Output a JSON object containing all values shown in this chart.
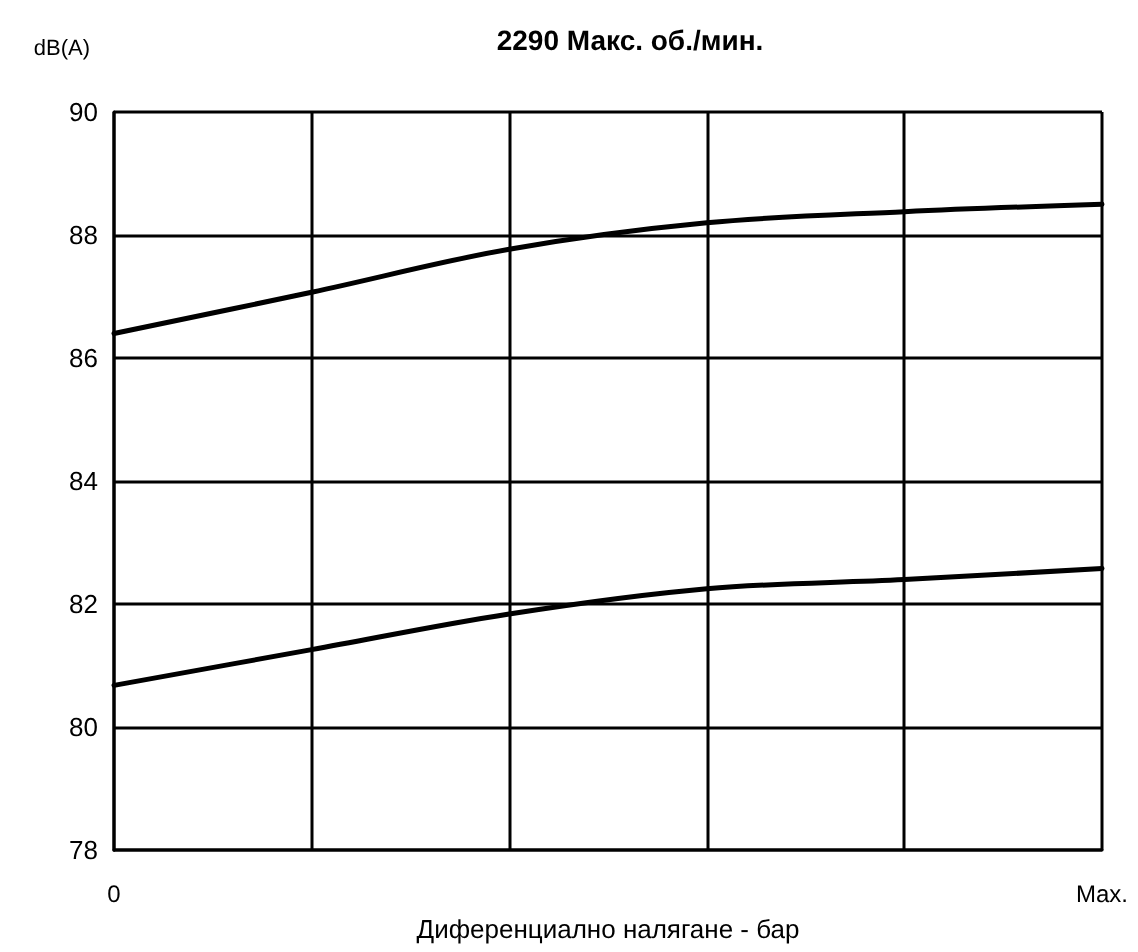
{
  "chart_data": {
    "type": "line",
    "title": "2290 Макс. об./мин.",
    "xlabel": "Диференциално налягане - бар",
    "ylabel": "dB(A)",
    "categories": [
      "0",
      null,
      null,
      null,
      null,
      "Max."
    ],
    "series": [
      {
        "color": "#000000",
        "values": [
          86.4,
          87.07,
          87.77,
          88.2,
          88.38,
          88.5
        ]
      },
      {
        "color": "#000000",
        "values": [
          80.68,
          81.26,
          81.84,
          82.25,
          82.4,
          82.58
        ]
      }
    ],
    "ylim": [
      78,
      90
    ],
    "yticks": [
      78,
      80,
      82,
      84,
      86,
      88,
      90
    ],
    "grid": true,
    "marker": "none",
    "line_style": "solid"
  }
}
